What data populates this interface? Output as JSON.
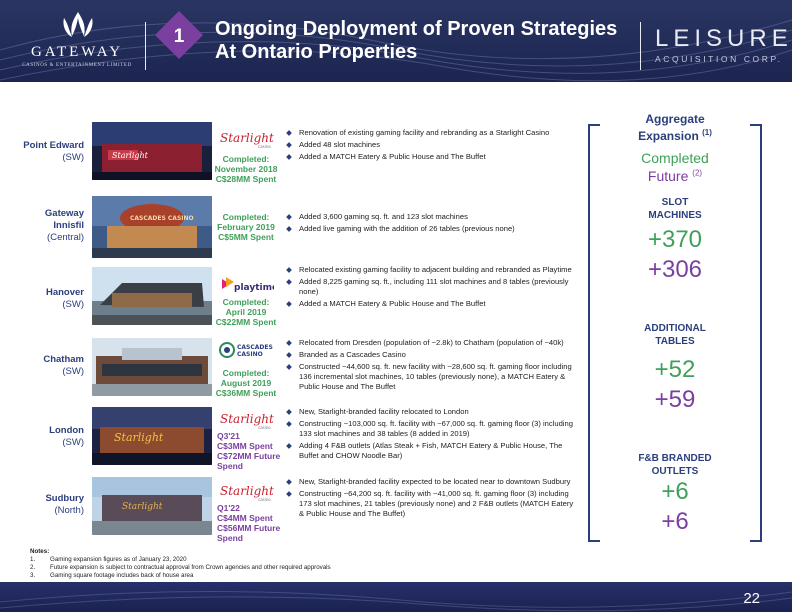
{
  "header": {
    "gateway": {
      "name": "GATEWAY",
      "sub": "CASINOS & ENTERTAINMENT LIMITED"
    },
    "section_number": "1",
    "title_line1": "Ongoing Deployment of Proven Strategies",
    "title_line2": "At Ontario Properties",
    "leisure": {
      "name": "LEISURE",
      "sub": "ACQUISITION CORP."
    }
  },
  "properties": [
    {
      "location": "Point Edward",
      "region": "(SW)",
      "brand": "Starlight Casino",
      "status": [
        "Completed:",
        "November 2018",
        "C$28MM Spent"
      ],
      "status_color": "#3fa05a",
      "bullets": [
        "Renovation of existing gaming facility and rebranding as a Starlight Casino",
        "Added 48 slot machines",
        "Added a MATCH Eatery & Public House and The Buffet"
      ]
    },
    {
      "location": "Gateway Innisfil",
      "region": "(Central)",
      "brand": "",
      "status": [
        "Completed:",
        "February 2019",
        "C$5MM Spent"
      ],
      "status_color": "#3fa05a",
      "bullets": [
        "Added 3,600 gaming sq. ft. and 123 slot machines",
        "Added live gaming with the addition of 26 tables (previous none)"
      ]
    },
    {
      "location": "Hanover",
      "region": "(SW)",
      "brand": "playtime",
      "status": [
        "Completed:",
        "April 2019",
        "C$22MM Spent"
      ],
      "status_color": "#3fa05a",
      "bullets": [
        "Relocated existing gaming facility to adjacent building and rebranded as Playtime",
        "Added 8,225 gaming sq. ft., including 111 slot machines and 8 tables (previously none)",
        "Added a MATCH Eatery & Public House and The Buffet"
      ]
    },
    {
      "location": "Chatham",
      "region": "(SW)",
      "brand": "CASCADES CASINO",
      "status": [
        "Completed:",
        "August 2019",
        "C$36MM Spent"
      ],
      "status_color": "#3fa05a",
      "bullets": [
        "Relocated from Dresden (population of ~2.8k) to Chatham (population of ~40k)",
        "Branded as a Cascades Casino",
        "Constructed ~44,600 sq. ft. new facility with ~28,600 sq. ft. gaming floor including 136 incremental slot machines, 10 tables (previously none), a MATCH Eatery & Public House and The Buffet"
      ]
    },
    {
      "location": "London",
      "region": "(SW)",
      "brand": "Starlight Casino",
      "status": [
        "Q3'21",
        "C$3MM Spent",
        "C$72MM Future",
        "Spend"
      ],
      "status_color": "#7b3fa0",
      "bullets": [
        "New, Starlight-branded facility relocated to London",
        "Constructing ~103,000 sq. ft. facility with ~67,000 sq. ft. gaming floor (3) including 133 slot machines and 38 tables (8 added in 2019)",
        "Adding 4 F&B outlets (Atlas Steak + Fish, MATCH Eatery & Public House, The Buffet and CHOW Noodle Bar)"
      ]
    },
    {
      "location": "Sudbury",
      "region": "(North)",
      "brand": "Starlight Casino",
      "status": [
        "Q1'22",
        "C$4MM Spent",
        "C$56MM Future",
        "Spend"
      ],
      "status_color": "#7b3fa0",
      "bullets": [
        "New, Starlight-branded facility expected to be located near to downtown Sudbury",
        "Constructing ~64,200 sq. ft. facility with ~41,000 sq. ft. gaming floor (3) including 173 slot machines, 21 tables (previously none) and 2 F&B outlets (MATCH Eatery & Public House and The Buffet)"
      ]
    }
  ],
  "aggregate": {
    "title_line1": "Aggregate",
    "title_line2": "Expansion",
    "title_sup": "(1)",
    "completed_label": "Completed",
    "future_label": "Future",
    "future_sup": "(2)",
    "slot_label": [
      "SLOT",
      "MACHINES"
    ],
    "slot_completed": "+370",
    "slot_future": "+306",
    "tables_label": [
      "ADDITIONAL",
      "TABLES"
    ],
    "tables_completed": "+52",
    "tables_future": "+59",
    "fb_label": [
      "F&B BRANDED",
      "OUTLETS"
    ],
    "fb_completed": "+6",
    "fb_future": "+6"
  },
  "notes": {
    "heading": "Notes:",
    "items": [
      {
        "n": "1.",
        "text": "Gaming expansion figures as of January 23, 2020"
      },
      {
        "n": "2.",
        "text": "Future expansion is subject to contractual approval from Crown agencies and other required approvals"
      },
      {
        "n": "3.",
        "text": "Gaming square footage includes back of house area"
      }
    ]
  },
  "page_number": "22",
  "colors": {
    "navy": "#2b3f7d",
    "green": "#3fa05a",
    "purple": "#7b3fa0",
    "header": "#1c2550"
  }
}
